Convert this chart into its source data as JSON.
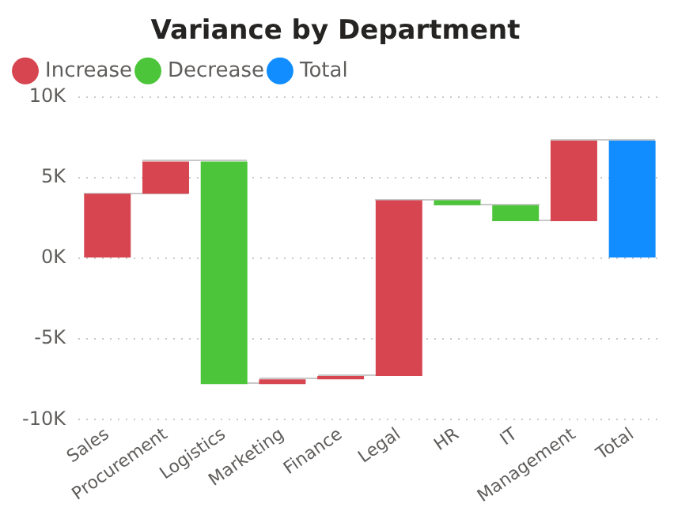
{
  "chart_data": {
    "type": "bar",
    "title": "Variance by Department",
    "categories": [
      "Sales",
      "Procurement",
      "Logistics",
      "Marketing",
      "Finance",
      "Legal",
      "HR",
      "IT",
      "Management",
      "Total"
    ],
    "series": [
      {
        "name": "Increase",
        "color": "#d64550",
        "base": [
          0,
          4000,
          null,
          -7800,
          -7500,
          -7300,
          null,
          null,
          2300,
          null
        ],
        "values": [
          4000,
          2000,
          null,
          300,
          200,
          10900,
          null,
          null,
          5000,
          null
        ]
      },
      {
        "name": "Decrease",
        "color": "#4cc53a",
        "base": [
          null,
          null,
          6000,
          null,
          null,
          null,
          3600,
          3300,
          null,
          null
        ],
        "values": [
          null,
          null,
          -13800,
          null,
          null,
          null,
          -300,
          -1000,
          null,
          null
        ]
      },
      {
        "name": "Total",
        "color": "#118dff",
        "base": [
          null,
          null,
          null,
          null,
          null,
          null,
          null,
          null,
          null,
          0
        ],
        "values": [
          null,
          null,
          null,
          null,
          null,
          null,
          null,
          null,
          null,
          7300
        ]
      }
    ],
    "ylim": [
      -10000,
      10000
    ],
    "yticks": [
      {
        "value": -10000,
        "label": "-10K"
      },
      {
        "value": -5000,
        "label": "-5K"
      },
      {
        "value": 0,
        "label": "0K"
      },
      {
        "value": 5000,
        "label": "5K"
      },
      {
        "value": 10000,
        "label": "10K"
      }
    ],
    "grid": "y",
    "legend": "top left"
  }
}
